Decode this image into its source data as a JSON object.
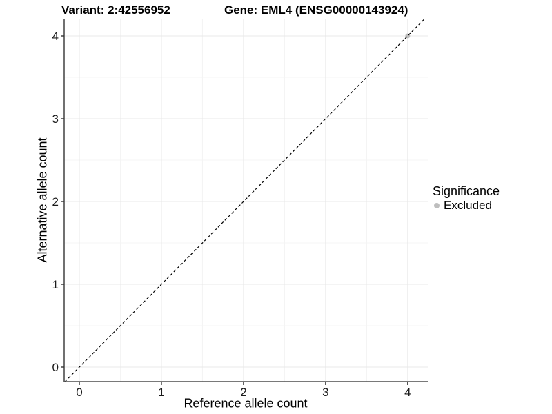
{
  "chart_data": {
    "type": "scatter",
    "titles": {
      "left": "Variant: 2:42556952",
      "right": "Gene: EML4 (ENSG00000143924)"
    },
    "xlabel": "Reference allele count",
    "ylabel": "Alternative allele count",
    "xlim": [
      -0.185,
      4.245
    ],
    "ylim": [
      -0.175,
      4.2
    ],
    "x_ticks": [
      0,
      1,
      2,
      3,
      4
    ],
    "y_ticks": [
      0,
      1,
      2,
      3,
      4
    ],
    "grid": "major and minor gridlines, minor at 0.5 steps",
    "series": [
      {
        "name": "Excluded",
        "color": "#bebebe",
        "points": [
          [
            4,
            4
          ]
        ]
      }
    ],
    "reference_line": {
      "label": "identity y = x",
      "slope": 1,
      "intercept": 0,
      "style": "dashed",
      "color": "#000000"
    },
    "legend": {
      "title": "Significance",
      "position": "right",
      "items": [
        {
          "label": "Excluded",
          "color": "#bebebe",
          "marker": "circle"
        }
      ]
    },
    "colors": {
      "background": "#ffffff",
      "grid_major": "#e8e8e8",
      "grid_minor": "#f4f4f4",
      "axis_line": "#4d4d4d",
      "tick_mark": "#333333",
      "tick_label": "#1a1a1a"
    }
  }
}
